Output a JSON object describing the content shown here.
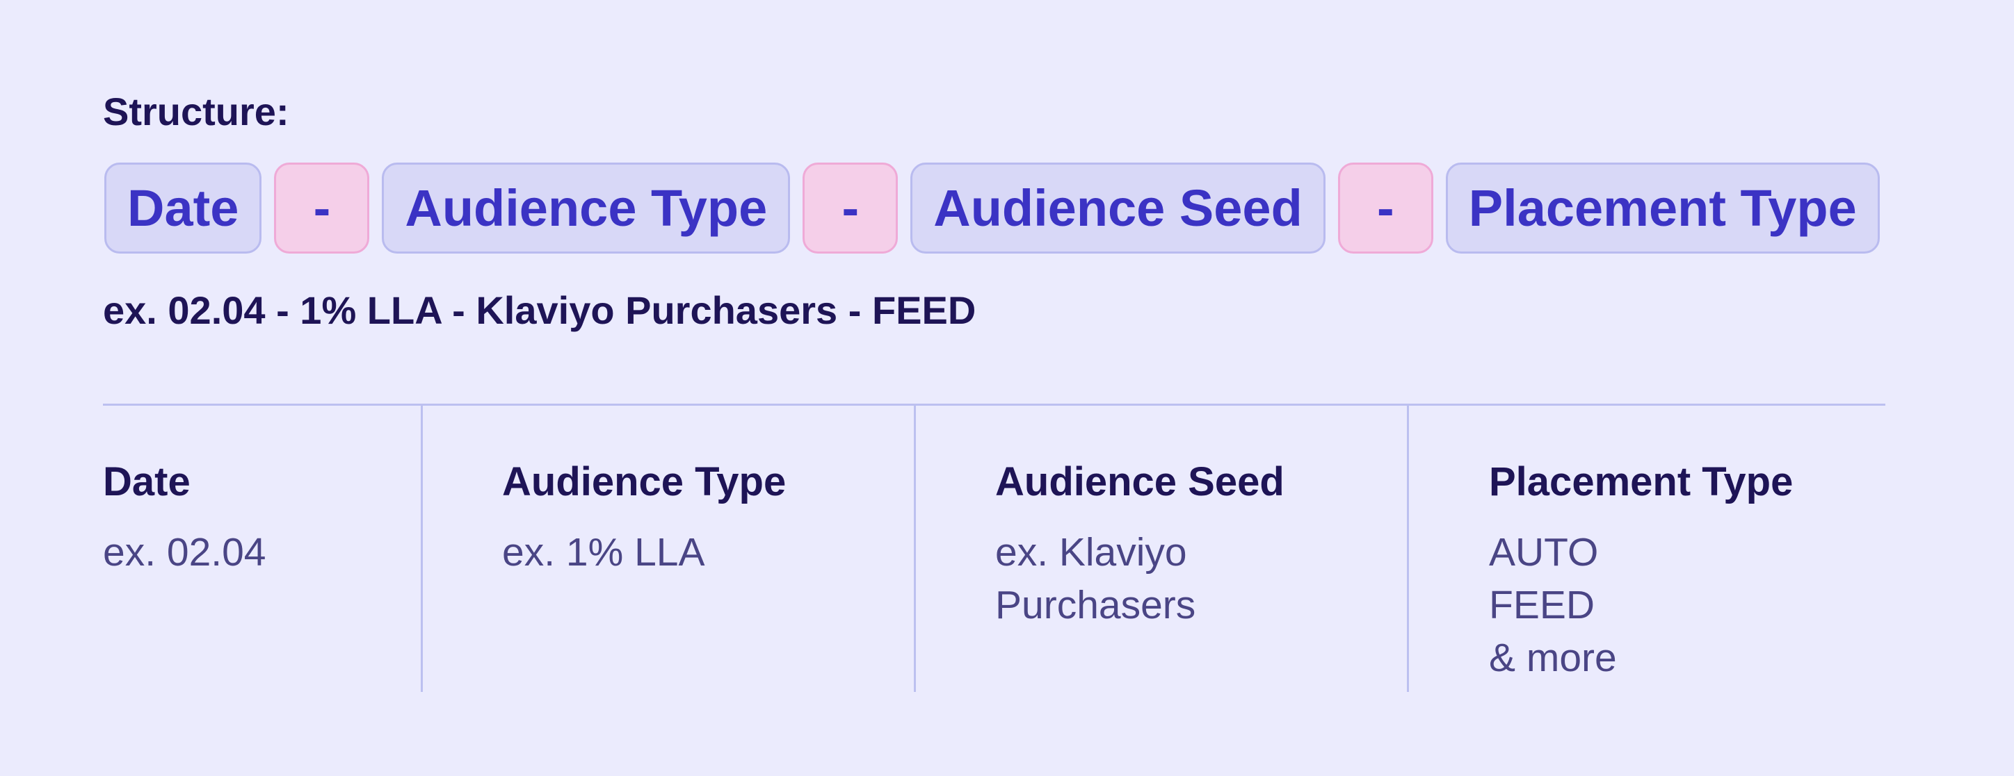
{
  "structure_label": "Structure:",
  "segments": [
    {
      "text": "Date",
      "kind": "field"
    },
    {
      "text": "-",
      "kind": "separator"
    },
    {
      "text": "Audience Type",
      "kind": "field"
    },
    {
      "text": "-",
      "kind": "separator"
    },
    {
      "text": "Audience Seed",
      "kind": "field"
    },
    {
      "text": "-",
      "kind": "separator"
    },
    {
      "text": "Placement Type",
      "kind": "field"
    }
  ],
  "example": "ex. 02.04 - 1% LLA - Klaviyo Purchasers - FEED",
  "columns": [
    {
      "title": "Date",
      "lines": [
        "ex. 02.04"
      ]
    },
    {
      "title": "Audience Type",
      "lines": [
        "ex. 1% LLA"
      ]
    },
    {
      "title": "Audience Seed",
      "lines": [
        "ex. Klaviyo",
        "Purchasers"
      ]
    },
    {
      "title": "Placement Type",
      "lines": [
        "AUTO",
        "FEED",
        "& more"
      ]
    }
  ]
}
